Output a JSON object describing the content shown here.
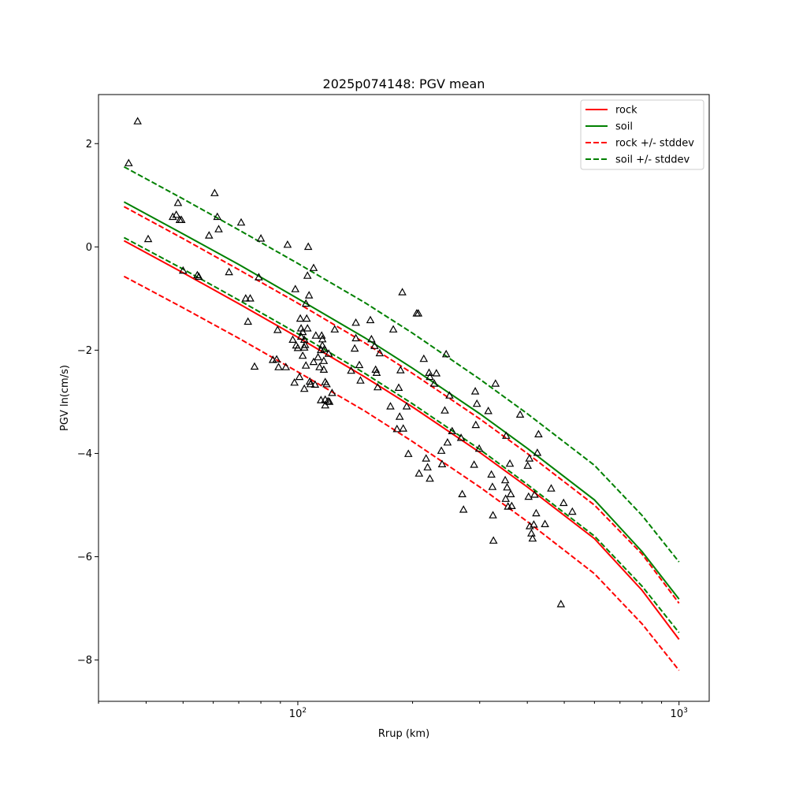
{
  "chart_data": {
    "type": "line",
    "title": "2025p074148: PGV mean",
    "xlabel": "Rrup (km)",
    "ylabel": "PGV ln(cm/s)",
    "xscale": "log",
    "xlim": [
      30,
      1200
    ],
    "ylim": [
      -8.8,
      2.95
    ],
    "x_ticks": [
      {
        "value": 100,
        "base": "10",
        "exp": "2"
      },
      {
        "value": 1000,
        "base": "10",
        "exp": "3"
      }
    ],
    "y_ticks": [
      {
        "value": 2,
        "label": "2"
      },
      {
        "value": 0,
        "label": "0"
      },
      {
        "value": -2,
        "label": "−2"
      },
      {
        "value": -4,
        "label": "−4"
      },
      {
        "value": -6,
        "label": "−6"
      },
      {
        "value": -8,
        "label": "−8"
      }
    ],
    "grid": false,
    "legend_position": "top-right",
    "series": [
      {
        "name": "rock",
        "color": "#ff0000",
        "style": "solid",
        "x": [
          35,
          50,
          70,
          100,
          150,
          200,
          300,
          400,
          600,
          800,
          1000
        ],
        "y": [
          0.12,
          -0.5,
          -1.1,
          -1.75,
          -2.52,
          -3.1,
          -3.98,
          -4.65,
          -5.65,
          -6.65,
          -7.6
        ]
      },
      {
        "name": "soil",
        "color": "#008000",
        "style": "solid",
        "x": [
          35,
          50,
          70,
          100,
          150,
          200,
          300,
          400,
          600,
          800,
          1000
        ],
        "y": [
          0.87,
          0.25,
          -0.34,
          -1.0,
          -1.76,
          -2.35,
          -3.23,
          -3.9,
          -4.9,
          -5.9,
          -6.82
        ]
      },
      {
        "name": "rock +/- stddev",
        "color": "#ff0000",
        "style": "dashed",
        "x": [
          35,
          50,
          70,
          100,
          150,
          200,
          300,
          400,
          600,
          800,
          1000
        ],
        "y": [
          0.78,
          0.16,
          -0.44,
          -1.09,
          -1.86,
          -2.45,
          -3.33,
          -4.0,
          -5.0,
          -5.95,
          -6.9
        ]
      },
      {
        "name": "",
        "color": "#ff0000",
        "style": "dashed",
        "x": [
          35,
          50,
          70,
          100,
          150,
          200,
          300,
          400,
          600,
          800,
          1000
        ],
        "y": [
          -0.57,
          -1.18,
          -1.77,
          -2.42,
          -3.18,
          -3.77,
          -4.65,
          -5.32,
          -6.33,
          -7.3,
          -8.2
        ]
      },
      {
        "name": "soil +/- stddev",
        "color": "#008000",
        "style": "dashed",
        "x": [
          35,
          50,
          70,
          100,
          150,
          200,
          300,
          400,
          600,
          800,
          1000
        ],
        "y": [
          1.55,
          0.93,
          0.33,
          -0.32,
          -1.08,
          -1.67,
          -2.56,
          -3.23,
          -4.23,
          -5.2,
          -6.1
        ]
      },
      {
        "name": "",
        "color": "#008000",
        "style": "dashed",
        "x": [
          35,
          50,
          70,
          100,
          150,
          200,
          300,
          400,
          600,
          800,
          1000
        ],
        "y": [
          0.18,
          -0.43,
          -1.03,
          -1.68,
          -2.45,
          -3.04,
          -3.92,
          -4.6,
          -5.6,
          -6.57,
          -7.47
        ]
      }
    ],
    "observations": {
      "marker": "triangle",
      "color": "#000000",
      "points": [
        [
          36,
          1.62
        ],
        [
          38,
          2.43
        ],
        [
          40.5,
          0.15
        ],
        [
          47,
          0.58
        ],
        [
          48,
          0.62
        ],
        [
          48.5,
          0.85
        ],
        [
          49,
          0.52
        ],
        [
          49.5,
          0.52
        ],
        [
          50,
          -0.46
        ],
        [
          54.5,
          -0.55
        ],
        [
          55,
          -0.58
        ],
        [
          58.5,
          0.22
        ],
        [
          60.5,
          1.04
        ],
        [
          61.5,
          0.58
        ],
        [
          62,
          0.34
        ],
        [
          66,
          -0.49
        ],
        [
          71,
          0.47
        ],
        [
          73,
          -1.0
        ],
        [
          74,
          -1.45
        ],
        [
          75,
          -1.0
        ],
        [
          80,
          0.16
        ],
        [
          79,
          -0.59
        ],
        [
          77,
          -2.32
        ],
        [
          86,
          -2.19
        ],
        [
          88,
          -2.18
        ],
        [
          88.5,
          -1.61
        ],
        [
          89,
          -2.33
        ],
        [
          93,
          -2.33
        ],
        [
          94,
          0.04
        ],
        [
          97,
          -1.8
        ],
        [
          98,
          -2.63
        ],
        [
          98.5,
          -0.82
        ],
        [
          99,
          -1.91
        ],
        [
          100,
          -1.96
        ],
        [
          101,
          -2.52
        ],
        [
          101.5,
          -1.39
        ],
        [
          102,
          -1.74
        ],
        [
          102,
          -1.58
        ],
        [
          103,
          -1.65
        ],
        [
          103,
          -2.11
        ],
        [
          104,
          -1.8
        ],
        [
          104,
          -1.95
        ],
        [
          104,
          -2.75
        ],
        [
          104.5,
          -1.9
        ],
        [
          105,
          -1.1
        ],
        [
          105,
          -2.3
        ],
        [
          105.5,
          -1.39
        ],
        [
          106,
          -0.56
        ],
        [
          106,
          -1.58
        ],
        [
          106.5,
          0.0
        ],
        [
          107,
          -0.94
        ],
        [
          107.5,
          -2.61
        ],
        [
          108,
          -2.66
        ],
        [
          110,
          -2.23
        ],
        [
          110,
          -0.41
        ],
        [
          111,
          -2.67
        ],
        [
          111.5,
          -1.72
        ],
        [
          113,
          -2.14
        ],
        [
          114,
          -2.33
        ],
        [
          115,
          -2.0
        ],
        [
          115,
          -2.97
        ],
        [
          115.5,
          -1.72
        ],
        [
          116,
          -1.79
        ],
        [
          116,
          -1.91
        ],
        [
          117,
          -2.21
        ],
        [
          117,
          -2.38
        ],
        [
          117.5,
          -1.98
        ],
        [
          118,
          -2.96
        ],
        [
          118,
          -3.07
        ],
        [
          118,
          -2.62
        ],
        [
          119,
          -2.66
        ],
        [
          120,
          -2.99
        ],
        [
          120.5,
          -2.07
        ],
        [
          121,
          -3.0
        ],
        [
          123,
          -2.83
        ],
        [
          125,
          -1.6
        ],
        [
          138,
          -2.4
        ],
        [
          141,
          -1.97
        ],
        [
          142,
          -1.47
        ],
        [
          142,
          -1.77
        ],
        [
          145,
          -2.29
        ],
        [
          146,
          -2.59
        ],
        [
          155,
          -1.42
        ],
        [
          156,
          -1.79
        ],
        [
          159,
          -1.92
        ],
        [
          160,
          -2.38
        ],
        [
          161,
          -2.44
        ],
        [
          162,
          -2.72
        ],
        [
          164,
          -2.06
        ],
        [
          175,
          -3.09
        ],
        [
          178,
          -1.6
        ],
        [
          182,
          -3.53
        ],
        [
          184,
          -2.73
        ],
        [
          185,
          -3.29
        ],
        [
          186,
          -2.39
        ],
        [
          188,
          -0.88
        ],
        [
          189,
          -3.52
        ],
        [
          193,
          -3.09
        ],
        [
          195,
          -4.01
        ],
        [
          205,
          -1.29
        ],
        [
          207,
          -1.29
        ],
        [
          208,
          -4.39
        ],
        [
          214,
          -2.17
        ],
        [
          217,
          -4.1
        ],
        [
          219,
          -4.27
        ],
        [
          221,
          -2.44
        ],
        [
          222,
          -2.52
        ],
        [
          222,
          -4.49
        ],
        [
          228,
          -2.65
        ],
        [
          231,
          -2.45
        ],
        [
          238,
          -3.95
        ],
        [
          239,
          -4.21
        ],
        [
          243,
          -3.17
        ],
        [
          245,
          -2.08
        ],
        [
          247,
          -3.79
        ],
        [
          250,
          -2.88
        ],
        [
          254,
          -3.57
        ],
        [
          268,
          -3.7
        ],
        [
          270,
          -4.79
        ],
        [
          272,
          -5.09
        ],
        [
          290,
          -4.22
        ],
        [
          292,
          -2.8
        ],
        [
          293,
          -3.45
        ],
        [
          295,
          -3.04
        ],
        [
          299,
          -3.91
        ],
        [
          316,
          -3.18
        ],
        [
          322,
          -4.41
        ],
        [
          324,
          -4.65
        ],
        [
          325,
          -5.2
        ],
        [
          326,
          -5.69
        ],
        [
          330,
          -2.65
        ],
        [
          350,
          -4.52
        ],
        [
          351,
          -4.88
        ],
        [
          352,
          -3.66
        ],
        [
          354,
          -4.66
        ],
        [
          356,
          -5.03
        ],
        [
          360,
          -4.2
        ],
        [
          362,
          -4.79
        ],
        [
          364,
          -5.02
        ],
        [
          383,
          -3.25
        ],
        [
          401,
          -4.24
        ],
        [
          403,
          -4.84
        ],
        [
          405,
          -4.1
        ],
        [
          406,
          -5.41
        ],
        [
          410,
          -5.55
        ],
        [
          413,
          -5.65
        ],
        [
          416,
          -5.38
        ],
        [
          418,
          -4.8
        ],
        [
          422,
          -5.16
        ],
        [
          425,
          -3.99
        ],
        [
          428,
          -3.63
        ],
        [
          445,
          -5.37
        ],
        [
          462,
          -4.68
        ],
        [
          490,
          -6.92
        ],
        [
          498,
          -4.96
        ],
        [
          525,
          -5.13
        ]
      ]
    }
  }
}
